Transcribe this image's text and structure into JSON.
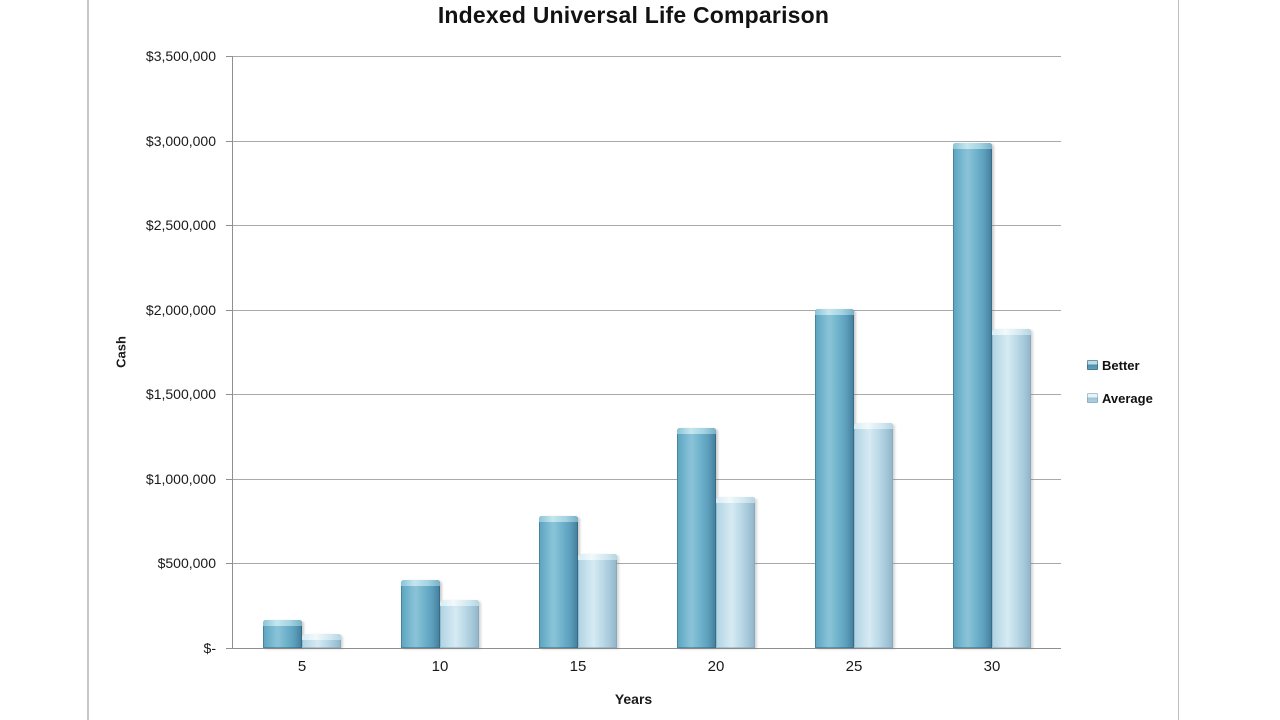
{
  "page": {
    "background": "#ffffff",
    "frame_color": "#c6c6c6"
  },
  "chart_data": {
    "type": "bar",
    "title": "Indexed Universal Life Comparison",
    "xlabel": "Years",
    "ylabel": "Cash",
    "categories": [
      "5",
      "10",
      "15",
      "20",
      "25",
      "30"
    ],
    "series": [
      {
        "name": "Better",
        "color": "#5FA6C1",
        "values": [
          165000,
          404000,
          780000,
          1300000,
          2005000,
          2986000
        ]
      },
      {
        "name": "Average",
        "color": "#AED2E2",
        "values": [
          83000,
          284000,
          556000,
          893000,
          1330000,
          1886000
        ]
      }
    ],
    "ylim": [
      0,
      3500000
    ],
    "yticks": [
      {
        "value": 3500000,
        "label": "$3,500,000"
      },
      {
        "value": 3000000,
        "label": "$3,000,000"
      },
      {
        "value": 2500000,
        "label": "$2,500,000"
      },
      {
        "value": 2000000,
        "label": "$2,000,000"
      },
      {
        "value": 1500000,
        "label": "$1,500,000"
      },
      {
        "value": 1000000,
        "label": "$1,000,000"
      },
      {
        "value": 500000,
        "label": "$500,000"
      },
      {
        "value": 0,
        "label": "$-"
      }
    ],
    "grid": "horizontal",
    "legend_position": "right",
    "grid_color": "#a9a9a9",
    "axis_color": "#8f8f8f"
  }
}
